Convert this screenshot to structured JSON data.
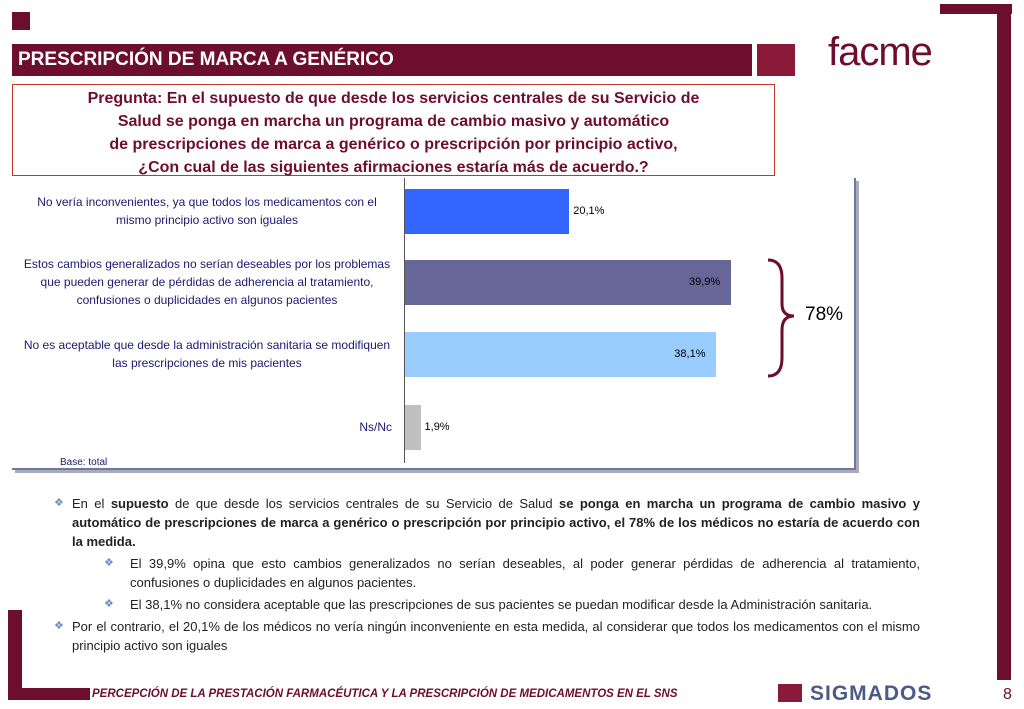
{
  "header": {
    "title": "PRESCRIPCIÓN DE MARCA A GENÉRICO",
    "logo": "facme"
  },
  "question": {
    "lines": [
      "Pregunta: En el supuesto de que desde los servicios centrales de su Servicio de",
      "Salud se ponga en marcha un programa de cambio masivo y automático",
      "de prescripciones de marca a genérico o prescripción por principio activo,",
      "¿Con cual de las siguientes afirmaciones estaría más de acuerdo.?"
    ]
  },
  "chart_data": {
    "type": "bar",
    "orientation": "horizontal",
    "categories": [
      "No vería inconvenientes, ya que todos los medicamentos con el mismo principio activo son iguales",
      "Estos cambios generalizados no serían deseables por los problemas que pueden generar de pérdidas de adherencia al tratamiento, confusiones o duplicidades en algunos pacientes",
      "No es aceptable que desde la administración sanitaria se modifiquen las prescripciones de mis pacientes",
      "Ns/Nc"
    ],
    "values": [
      20.1,
      39.9,
      38.1,
      1.9
    ],
    "value_labels": [
      "20,1%",
      "39,9%",
      "38,1%",
      "1,9%"
    ],
    "colors": [
      "#3366ff",
      "#666699",
      "#99ccff",
      "#c0c0c0"
    ],
    "annotation": "78%",
    "note": "Base: total"
  },
  "bullets": [
    {
      "level": 1,
      "runs": [
        {
          "text": "En el ",
          "bold": false
        },
        {
          "text": "supuesto",
          "bold": true
        },
        {
          "text": " de que desde los servicios centrales de su Servicio de Salud ",
          "bold": false
        },
        {
          "text": "se ponga en marcha un programa de cambio masivo y automático de prescripciones de marca a genérico o prescripción por principio activo, el 78% de los médicos no estaría de acuerdo con la medida.",
          "bold": true
        }
      ]
    },
    {
      "level": 2,
      "runs": [
        {
          "text": "El 39,9% opina que esto cambios generalizados no serían deseables, al poder generar pérdidas de adherencia al tratamiento, confusiones o duplicidades en algunos pacientes.",
          "bold": false
        }
      ]
    },
    {
      "level": 2,
      "runs": [
        {
          "text": "El 38,1% no considera aceptable que las prescripciones de sus pacientes se puedan modificar desde la Administración sanitaria.",
          "bold": false
        }
      ]
    },
    {
      "level": 1,
      "runs": [
        {
          "text": "Por el contrario, el 20,1% de los médicos no vería ningún inconveniente en esta medida, al considerar que todos los medicamentos con el mismo principio activo son iguales",
          "bold": false
        }
      ]
    }
  ],
  "footer": {
    "text": "PERCEPCIÓN DE LA PRESTACIÓN FARMACÉUTICA Y LA PRESCRIPCIÓN DE MEDICAMENTOS EN EL SNS",
    "brand": "SIGMADOS",
    "page": "8"
  }
}
